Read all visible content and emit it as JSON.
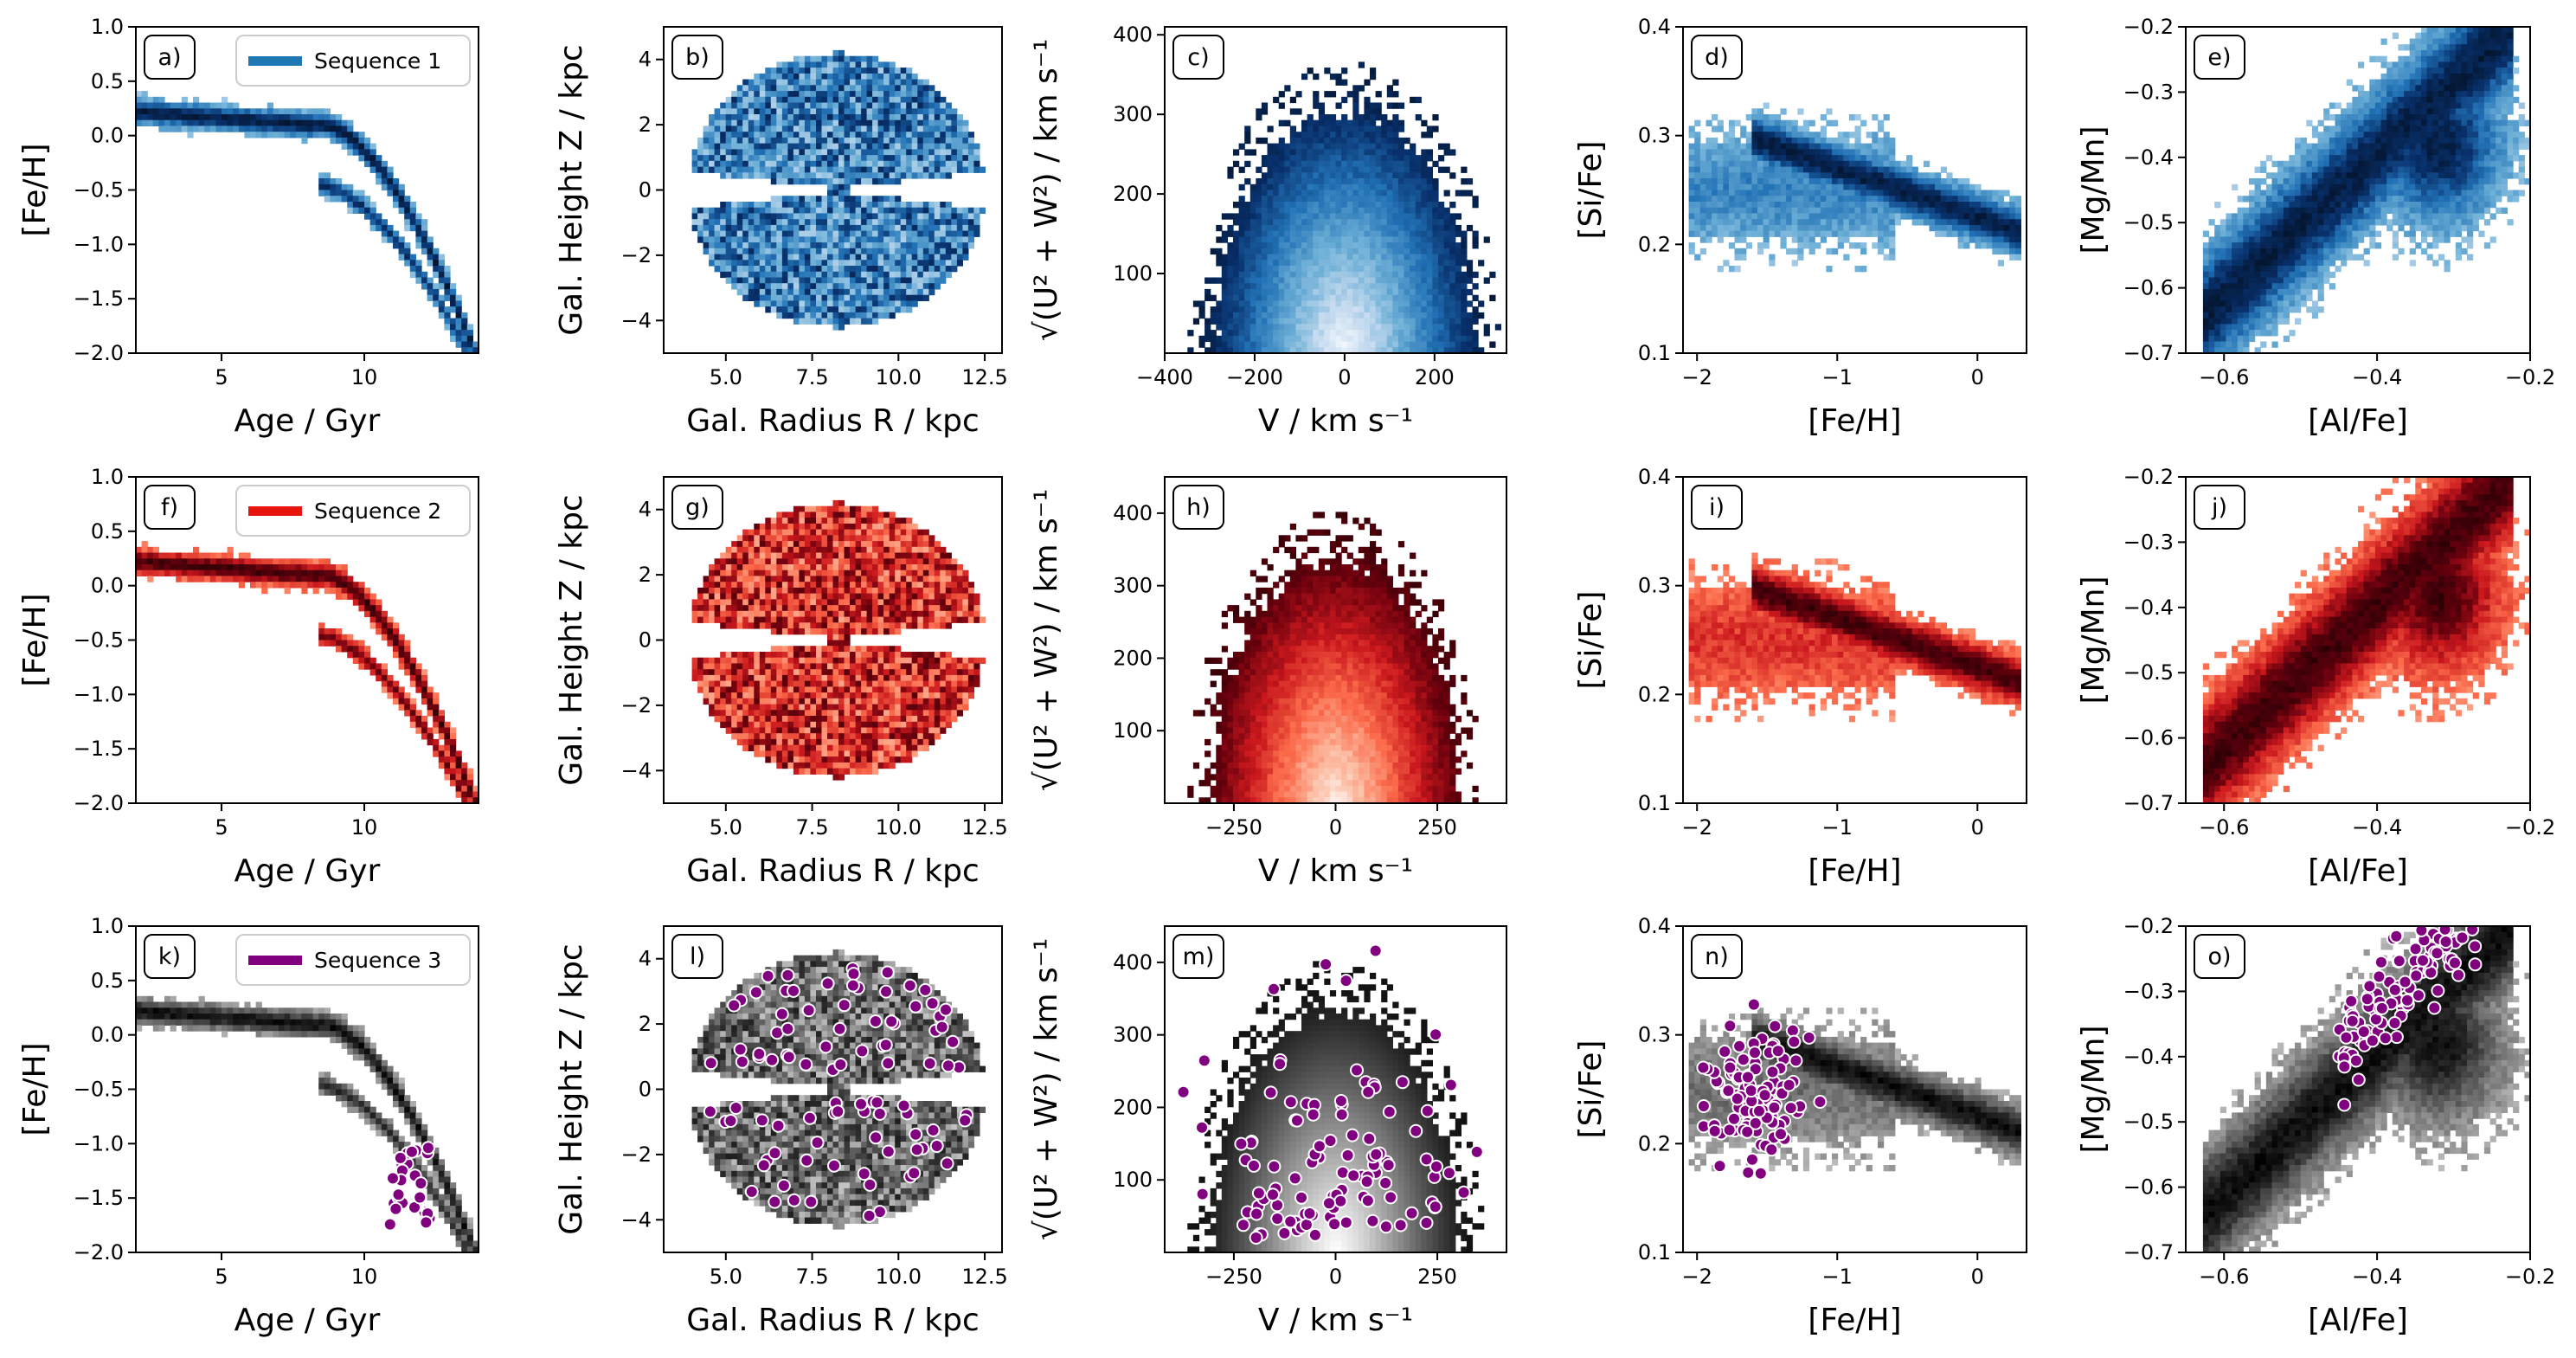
{
  "chart_data": [
    {
      "id": "a",
      "type": "heatmap",
      "panel_label": "a)",
      "legend": "Sequence 1",
      "xlabel": "Age / Gyr",
      "ylabel": "[Fe/H]",
      "xlim": [
        2,
        14
      ],
      "ylim": [
        -2.0,
        1.0
      ],
      "x_ticks": [
        5,
        10
      ],
      "x_tick_labels": [
        "5",
        "10"
      ],
      "y_ticks": [
        -2.0,
        -1.5,
        -1.0,
        -0.5,
        0.0,
        0.5,
        1.0
      ],
      "y_tick_labels": [
        "−2.0",
        "−1.5",
        "−1.0",
        "−0.5",
        "0.0",
        "0.5",
        "1.0"
      ],
      "highlight_color": "#1f77b4",
      "colormap": "Blues",
      "background": "grey-sequence",
      "sequence": 1
    },
    {
      "id": "b",
      "type": "heatmap",
      "panel_label": "b)",
      "xlabel": "Gal. Radius R / kpc",
      "ylabel": "Gal. Height Z / kpc",
      "xlim": [
        3.2,
        13.0
      ],
      "ylim": [
        -5,
        5
      ],
      "x_ticks": [
        5.0,
        7.5,
        10.0,
        12.5
      ],
      "x_tick_labels": [
        "5.0",
        "7.5",
        "10.0",
        "12.5"
      ],
      "y_ticks": [
        -4,
        -2,
        0,
        2,
        4
      ],
      "y_tick_labels": [
        "−4",
        "−2",
        "0",
        "2",
        "4"
      ],
      "colormap": "Blues",
      "sequence": 1
    },
    {
      "id": "c",
      "type": "heatmap",
      "panel_label": "c)",
      "xlabel": "V / km s⁻¹",
      "ylabel": "√(U² + W²) / km s⁻¹",
      "xlim": [
        -400,
        360
      ],
      "ylim": [
        0,
        410
      ],
      "x_ticks": [
        -400,
        -200,
        0,
        200
      ],
      "x_tick_labels": [
        "−400",
        "−200",
        "0",
        "200"
      ],
      "y_ticks": [
        100,
        200,
        300,
        400
      ],
      "y_tick_labels": [
        "100",
        "200",
        "300",
        "400"
      ],
      "colormap": "Blues",
      "sequence": 1
    },
    {
      "id": "d",
      "type": "heatmap",
      "panel_label": "d)",
      "xlabel": "[Fe/H]",
      "ylabel": "[Si/Fe]",
      "xlim": [
        -2.1,
        0.35
      ],
      "ylim": [
        0.1,
        0.4
      ],
      "x_ticks": [
        -2,
        -1,
        0
      ],
      "x_tick_labels": [
        "−2",
        "−1",
        "0"
      ],
      "y_ticks": [
        0.1,
        0.2,
        0.3,
        0.4
      ],
      "y_tick_labels": [
        "0.1",
        "0.2",
        "0.3",
        "0.4"
      ],
      "colormap": "Blues",
      "sequence": 1
    },
    {
      "id": "e",
      "type": "heatmap",
      "panel_label": "e)",
      "xlabel": "[Al/Fe]",
      "ylabel": "[Mg/Mn]",
      "xlim": [
        -0.65,
        -0.2
      ],
      "ylim": [
        -0.7,
        -0.2
      ],
      "x_ticks": [
        -0.6,
        -0.4,
        -0.2
      ],
      "x_tick_labels": [
        "−0.6",
        "−0.4",
        "−0.2"
      ],
      "y_ticks": [
        -0.7,
        -0.6,
        -0.5,
        -0.4,
        -0.3,
        -0.2
      ],
      "y_tick_labels": [
        "−0.7",
        "−0.6",
        "−0.5",
        "−0.4",
        "−0.3",
        "−0.2"
      ],
      "colormap": "Blues",
      "sequence": 1
    },
    {
      "id": "f",
      "type": "heatmap",
      "panel_label": "f)",
      "legend": "Sequence 2",
      "xlabel": "Age / Gyr",
      "ylabel": "[Fe/H]",
      "xlim": [
        2,
        14
      ],
      "ylim": [
        -2.0,
        1.0
      ],
      "x_ticks": [
        5,
        10
      ],
      "x_tick_labels": [
        "5",
        "10"
      ],
      "y_ticks": [
        -2.0,
        -1.5,
        -1.0,
        -0.5,
        0.0,
        0.5,
        1.0
      ],
      "y_tick_labels": [
        "−2.0",
        "−1.5",
        "−1.0",
        "−0.5",
        "0.0",
        "0.5",
        "1.0"
      ],
      "highlight_color": "#e8150f",
      "colormap": "Reds",
      "sequence": 2
    },
    {
      "id": "g",
      "type": "heatmap",
      "panel_label": "g)",
      "xlabel": "Gal. Radius R / kpc",
      "ylabel": "Gal. Height Z / kpc",
      "xlim": [
        3.2,
        13.0
      ],
      "ylim": [
        -5,
        5
      ],
      "x_ticks": [
        5.0,
        7.5,
        10.0,
        12.5
      ],
      "x_tick_labels": [
        "5.0",
        "7.5",
        "10.0",
        "12.5"
      ],
      "y_ticks": [
        -4,
        -2,
        0,
        2,
        4
      ],
      "y_tick_labels": [
        "−4",
        "−2",
        "0",
        "2",
        "4"
      ],
      "colormap": "Reds",
      "sequence": 2
    },
    {
      "id": "h",
      "type": "heatmap",
      "panel_label": "h)",
      "xlabel": "V / km s⁻¹",
      "ylabel": "√(U² + W²) / km s⁻¹",
      "xlim": [
        -420,
        420
      ],
      "ylim": [
        0,
        450
      ],
      "x_ticks": [
        -250,
        0,
        250
      ],
      "x_tick_labels": [
        "−250",
        "0",
        "250"
      ],
      "y_ticks": [
        100,
        200,
        300,
        400
      ],
      "y_tick_labels": [
        "100",
        "200",
        "300",
        "400"
      ],
      "colormap": "Reds",
      "sequence": 2
    },
    {
      "id": "i",
      "type": "heatmap",
      "panel_label": "i)",
      "xlabel": "[Fe/H]",
      "ylabel": "[Si/Fe]",
      "xlim": [
        -2.1,
        0.35
      ],
      "ylim": [
        0.1,
        0.4
      ],
      "x_ticks": [
        -2,
        -1,
        0
      ],
      "x_tick_labels": [
        "−2",
        "−1",
        "0"
      ],
      "y_ticks": [
        0.1,
        0.2,
        0.3,
        0.4
      ],
      "y_tick_labels": [
        "0.1",
        "0.2",
        "0.3",
        "0.4"
      ],
      "colormap": "Reds",
      "sequence": 2
    },
    {
      "id": "j",
      "type": "heatmap",
      "panel_label": "j)",
      "xlabel": "[Al/Fe]",
      "ylabel": "[Mg/Mn]",
      "xlim": [
        -0.65,
        -0.2
      ],
      "ylim": [
        -0.7,
        -0.2
      ],
      "x_ticks": [
        -0.6,
        -0.4,
        -0.2
      ],
      "x_tick_labels": [
        "−0.6",
        "−0.4",
        "−0.2"
      ],
      "y_ticks": [
        -0.7,
        -0.6,
        -0.5,
        -0.4,
        -0.3,
        -0.2
      ],
      "y_tick_labels": [
        "−0.7",
        "−0.6",
        "−0.5",
        "−0.4",
        "−0.3",
        "−0.2"
      ],
      "colormap": "Reds",
      "sequence": 2
    },
    {
      "id": "k",
      "type": "scatter",
      "panel_label": "k)",
      "legend": "Sequence 3",
      "xlabel": "Age / Gyr",
      "ylabel": "[Fe/H]",
      "xlim": [
        2,
        14
      ],
      "ylim": [
        -2.0,
        1.0
      ],
      "x_ticks": [
        5,
        10
      ],
      "x_tick_labels": [
        "5",
        "10"
      ],
      "y_ticks": [
        -2.0,
        -1.5,
        -1.0,
        -0.5,
        0.0,
        0.5,
        1.0
      ],
      "y_tick_labels": [
        "−2.0",
        "−1.5",
        "−1.0",
        "−0.5",
        "0.0",
        "0.5",
        "1.0"
      ],
      "highlight_color": "#800080",
      "sequence": 3
    },
    {
      "id": "l",
      "type": "scatter",
      "panel_label": "l)",
      "xlabel": "Gal. Radius R / kpc",
      "ylabel": "Gal. Height Z / kpc",
      "xlim": [
        3.2,
        13.0
      ],
      "ylim": [
        -5,
        5
      ],
      "x_ticks": [
        5.0,
        7.5,
        10.0,
        12.5
      ],
      "x_tick_labels": [
        "5.0",
        "7.5",
        "10.0",
        "12.5"
      ],
      "y_ticks": [
        -4,
        -2,
        0,
        2,
        4
      ],
      "y_tick_labels": [
        "−4",
        "−2",
        "0",
        "2",
        "4"
      ],
      "highlight_color": "#800080",
      "sequence": 3
    },
    {
      "id": "m",
      "type": "scatter",
      "panel_label": "m)",
      "xlabel": "V / km s⁻¹",
      "ylabel": "√(U² + W²) / km s⁻¹",
      "xlim": [
        -420,
        420
      ],
      "ylim": [
        0,
        450
      ],
      "x_ticks": [
        -250,
        0,
        250
      ],
      "x_tick_labels": [
        "−250",
        "0",
        "250"
      ],
      "y_ticks": [
        100,
        200,
        300,
        400
      ],
      "y_tick_labels": [
        "100",
        "200",
        "300",
        "400"
      ],
      "highlight_color": "#800080",
      "sequence": 3
    },
    {
      "id": "n",
      "type": "scatter",
      "panel_label": "n)",
      "xlabel": "[Fe/H]",
      "ylabel": "[Si/Fe]",
      "xlim": [
        -2.1,
        0.35
      ],
      "ylim": [
        0.1,
        0.4
      ],
      "x_ticks": [
        -2,
        -1,
        0
      ],
      "x_tick_labels": [
        "−2",
        "−1",
        "0"
      ],
      "y_ticks": [
        0.1,
        0.2,
        0.3,
        0.4
      ],
      "y_tick_labels": [
        "0.1",
        "0.2",
        "0.3",
        "0.4"
      ],
      "highlight_color": "#800080",
      "sequence": 3
    },
    {
      "id": "o",
      "type": "scatter",
      "panel_label": "o)",
      "xlabel": "[Al/Fe]",
      "ylabel": "[Mg/Mn]",
      "xlim": [
        -0.65,
        -0.2
      ],
      "ylim": [
        -0.7,
        -0.2
      ],
      "x_ticks": [
        -0.6,
        -0.4,
        -0.2
      ],
      "x_tick_labels": [
        "−0.6",
        "−0.4",
        "−0.2"
      ],
      "y_ticks": [
        -0.7,
        -0.6,
        -0.5,
        -0.4,
        -0.3,
        -0.2
      ],
      "y_tick_labels": [
        "−0.7",
        "−0.6",
        "−0.5",
        "−0.4",
        "−0.3",
        "−0.2"
      ],
      "highlight_color": "#800080",
      "sequence": 3
    }
  ]
}
